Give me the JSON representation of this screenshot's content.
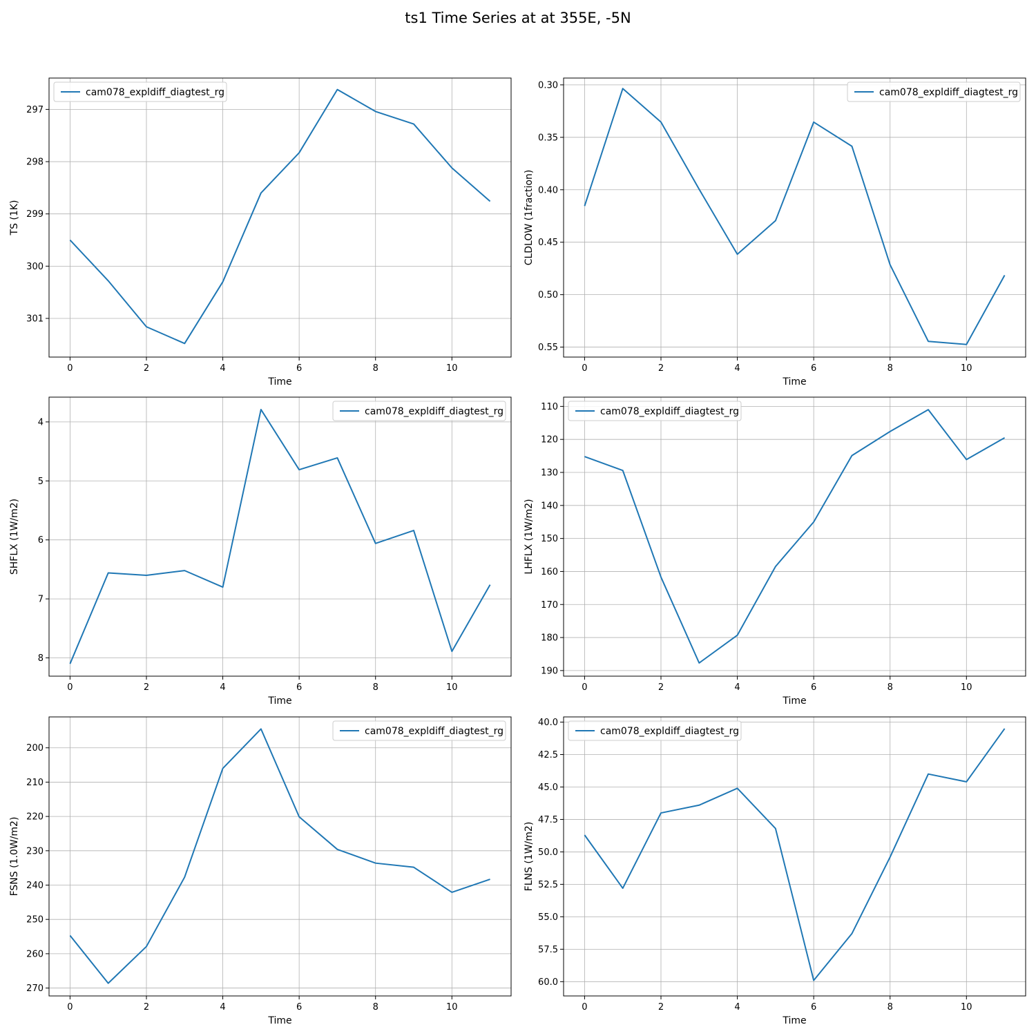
{
  "suptitle": "ts1 Time Series at at 355E, -5N",
  "colors": {
    "line": "#1f77b4",
    "grid": "#b0b0b0",
    "legend_border": "#cccccc"
  },
  "chart_data": [
    {
      "type": "line",
      "xlabel": "Time",
      "ylabel": "TS (1K)",
      "x": [
        0,
        1,
        2,
        3,
        4,
        5,
        6,
        7,
        8,
        9,
        10,
        11
      ],
      "xlim": [
        -0.55,
        11.55
      ],
      "ylim": [
        301.74,
        296.4
      ],
      "inverted_y": true,
      "xticks": [
        0,
        2,
        4,
        6,
        8,
        10
      ],
      "yticks": [
        297,
        298,
        299,
        300,
        301
      ],
      "ytick_labels": [
        "297",
        "298",
        "299",
        "300",
        "301"
      ],
      "grid": true,
      "legend_loc": "upper left",
      "series": [
        {
          "name": "cam078_expldiff_diagtest_rg",
          "values": [
            299.5,
            300.28,
            301.16,
            301.48,
            300.3,
            298.6,
            297.83,
            296.62,
            297.04,
            297.28,
            298.12,
            298.76
          ]
        }
      ]
    },
    {
      "type": "line",
      "xlabel": "Time",
      "ylabel": "CLDLOW (1fraction)",
      "x": [
        0,
        1,
        2,
        3,
        4,
        5,
        6,
        7,
        8,
        9,
        10,
        11
      ],
      "xlim": [
        -0.55,
        11.55
      ],
      "ylim": [
        0.5595,
        0.2935
      ],
      "inverted_y": true,
      "xticks": [
        0,
        2,
        4,
        6,
        8,
        10
      ],
      "yticks": [
        0.3,
        0.35,
        0.4,
        0.45,
        0.5,
        0.55
      ],
      "ytick_labels": [
        "0.30",
        "0.35",
        "0.40",
        "0.45",
        "0.50",
        "0.55"
      ],
      "grid": true,
      "legend_loc": "upper right",
      "series": [
        {
          "name": "cam078_expldiff_diagtest_rg",
          "values": [
            0.4155,
            0.3035,
            0.3355,
            0.3995,
            0.4615,
            0.4295,
            0.3355,
            0.3585,
            0.4715,
            0.5445,
            0.5475,
            0.4815
          ]
        }
      ]
    },
    {
      "type": "line",
      "xlabel": "Time",
      "ylabel": "SHFLX (1W/m2)",
      "x": [
        0,
        1,
        2,
        3,
        4,
        5,
        6,
        7,
        8,
        9,
        10,
        11
      ],
      "xlim": [
        -0.55,
        11.55
      ],
      "ylim": [
        8.31,
        3.58
      ],
      "inverted_y": true,
      "xticks": [
        0,
        2,
        4,
        6,
        8,
        10
      ],
      "yticks": [
        4,
        5,
        6,
        7,
        8
      ],
      "ytick_labels": [
        "4",
        "5",
        "6",
        "7",
        "8"
      ],
      "grid": true,
      "legend_loc": "upper right",
      "series": [
        {
          "name": "cam078_expldiff_diagtest_rg",
          "values": [
            8.1,
            6.56,
            6.6,
            6.52,
            6.8,
            3.79,
            4.81,
            4.61,
            6.06,
            5.84,
            7.89,
            6.76
          ]
        }
      ]
    },
    {
      "type": "line",
      "xlabel": "Time",
      "ylabel": "LHFLX (1W/m2)",
      "x": [
        0,
        1,
        2,
        3,
        4,
        5,
        6,
        7,
        8,
        9,
        10,
        11
      ],
      "xlim": [
        -0.55,
        11.55
      ],
      "ylim": [
        191.7,
        107.2
      ],
      "inverted_y": true,
      "xticks": [
        0,
        2,
        4,
        6,
        8,
        10
      ],
      "yticks": [
        110,
        120,
        130,
        140,
        150,
        160,
        170,
        180,
        190
      ],
      "ytick_labels": [
        "110",
        "120",
        "130",
        "140",
        "150",
        "160",
        "170",
        "180",
        "190"
      ],
      "grid": true,
      "legend_loc": "upper left",
      "series": [
        {
          "name": "cam078_expldiff_diagtest_rg",
          "values": [
            125.2,
            129.4,
            161.7,
            187.7,
            179.3,
            158.5,
            145.0,
            124.9,
            117.6,
            111.0,
            126.1,
            119.5
          ]
        }
      ]
    },
    {
      "type": "line",
      "xlabel": "Time",
      "ylabel": "FSNS (1.0W/m2)",
      "x": [
        0,
        1,
        2,
        3,
        4,
        5,
        6,
        7,
        8,
        9,
        10,
        11
      ],
      "xlim": [
        -0.55,
        11.55
      ],
      "ylim": [
        272.3,
        191.0
      ],
      "inverted_y": true,
      "xticks": [
        0,
        2,
        4,
        6,
        8,
        10
      ],
      "yticks": [
        200,
        210,
        220,
        230,
        240,
        250,
        260,
        270
      ],
      "ytick_labels": [
        "200",
        "210",
        "220",
        "230",
        "240",
        "250",
        "260",
        "270"
      ],
      "grid": true,
      "legend_loc": "upper right",
      "series": [
        {
          "name": "cam078_expldiff_diagtest_rg",
          "values": [
            254.7,
            268.6,
            257.9,
            237.7,
            206.0,
            194.5,
            220.1,
            229.6,
            233.6,
            234.8,
            242.1,
            238.3
          ]
        }
      ]
    },
    {
      "type": "line",
      "xlabel": "Time",
      "ylabel": "FLNS (1W/m2)",
      "x": [
        0,
        1,
        2,
        3,
        4,
        5,
        6,
        7,
        8,
        9,
        10,
        11
      ],
      "xlim": [
        -0.55,
        11.55
      ],
      "ylim": [
        61.1,
        39.6
      ],
      "inverted_y": true,
      "xticks": [
        0,
        2,
        4,
        6,
        8,
        10
      ],
      "yticks": [
        40.0,
        42.5,
        45.0,
        47.5,
        50.0,
        52.5,
        55.0,
        57.5,
        60.0
      ],
      "ytick_labels": [
        "40.0",
        "42.5",
        "45.0",
        "47.5",
        "50.0",
        "52.5",
        "55.0",
        "57.5",
        "60.0"
      ],
      "grid": true,
      "legend_loc": "upper left",
      "series": [
        {
          "name": "cam078_expldiff_diagtest_rg",
          "values": [
            48.7,
            52.8,
            47.0,
            46.4,
            45.1,
            48.2,
            59.9,
            56.3,
            50.4,
            44.0,
            44.6,
            40.5
          ]
        }
      ]
    }
  ]
}
